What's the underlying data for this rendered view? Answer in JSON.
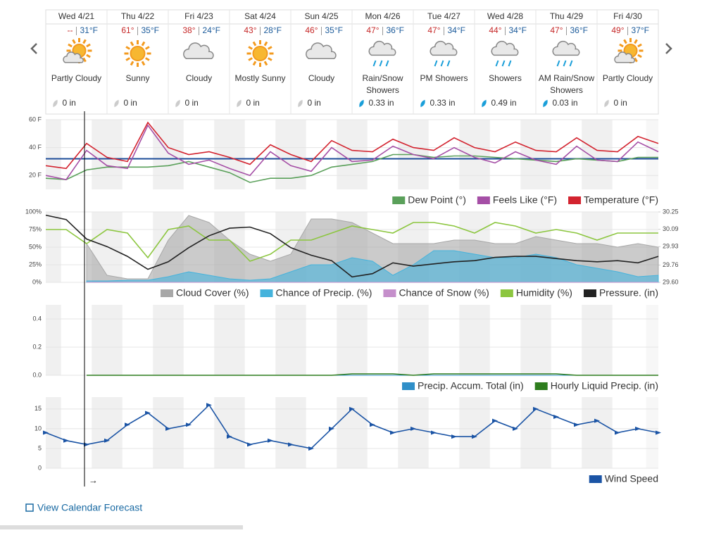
{
  "forecast_days": [
    {
      "day": "Wed 4/21",
      "hi": "--",
      "lo": "31°F",
      "condition": "Partly Cloudy",
      "precip": "0 in"
    },
    {
      "day": "Thu 4/22",
      "hi": "61°",
      "lo": "35°F",
      "condition": "Sunny",
      "precip": "0 in"
    },
    {
      "day": "Fri 4/23",
      "hi": "38°",
      "lo": "24°F",
      "condition": "Cloudy",
      "precip": "0 in"
    },
    {
      "day": "Sat 4/24",
      "hi": "43°",
      "lo": "28°F",
      "condition": "Mostly Sunny",
      "precip": "0 in"
    },
    {
      "day": "Sun 4/25",
      "hi": "46°",
      "lo": "35°F",
      "condition": "Cloudy",
      "precip": "0 in"
    },
    {
      "day": "Mon 4/26",
      "hi": "47°",
      "lo": "36°F",
      "condition": "Rain/Snow Showers",
      "precip": "0.33 in"
    },
    {
      "day": "Tue 4/27",
      "hi": "47°",
      "lo": "34°F",
      "condition": "PM Showers",
      "precip": "0.33 in"
    },
    {
      "day": "Wed 4/28",
      "hi": "44°",
      "lo": "34°F",
      "condition": "Showers",
      "precip": "0.49 in"
    },
    {
      "day": "Thu 4/29",
      "hi": "47°",
      "lo": "36°F",
      "condition": "AM Rain/Snow Showers",
      "precip": "0.03 in"
    },
    {
      "day": "Fri 4/30",
      "hi": "49°",
      "lo": "37°F",
      "condition": "Partly Cloudy",
      "precip": "0 in"
    }
  ],
  "now_marker": "→",
  "link": "View Calendar Forecast",
  "chart_data": [
    {
      "type": "line",
      "ylim": [
        10,
        60
      ],
      "yticks": [
        {
          "value": 20,
          "label": "20 F"
        },
        {
          "value": 40,
          "label": "40 F"
        },
        {
          "value": 60,
          "label": "60 F"
        }
      ],
      "freeze_line": 32,
      "freeze_color": "#1f4e9a",
      "series": [
        {
          "name": "Dew Point (°)",
          "color": "#5aa05a",
          "values": [
            18,
            17,
            24,
            26,
            26,
            26,
            27,
            30,
            26,
            22,
            15,
            18,
            18,
            20,
            26,
            28,
            30,
            35,
            35,
            33,
            34,
            34,
            33,
            32,
            31,
            30,
            32,
            31,
            30,
            33,
            33
          ]
        },
        {
          "name": "Feels Like (°F)",
          "color": "#a54fa6",
          "values": [
            20,
            17,
            38,
            27,
            25,
            56,
            36,
            28,
            31,
            25,
            20,
            37,
            27,
            23,
            40,
            30,
            31,
            41,
            35,
            32,
            40,
            33,
            29,
            37,
            31,
            28,
            41,
            31,
            30,
            44,
            37
          ]
        },
        {
          "name": "Temperature (°F)",
          "color": "#d3232f",
          "values": [
            27,
            25,
            43,
            33,
            30,
            58,
            40,
            35,
            37,
            33,
            28,
            42,
            35,
            30,
            45,
            38,
            37,
            46,
            40,
            38,
            47,
            40,
            37,
            44,
            38,
            37,
            47,
            38,
            37,
            48,
            43
          ]
        }
      ]
    },
    {
      "type": "line",
      "ylim": [
        0,
        100
      ],
      "yticks": [
        {
          "value": 0,
          "label": "0%"
        },
        {
          "value": 25,
          "label": "25%"
        },
        {
          "value": 50,
          "label": "50%"
        },
        {
          "value": 75,
          "label": "75%"
        },
        {
          "value": 100,
          "label": "100%"
        }
      ],
      "y2lim": [
        29.6,
        30.25
      ],
      "y2ticks": [
        {
          "value": 29.6,
          "label": "29.60"
        },
        29.76,
        29.93,
        30.09,
        30.25
      ],
      "series": [
        {
          "name": "Cloud Cover (%)",
          "color": "#a8a8a8",
          "style": "area",
          "values": [
            null,
            null,
            55,
            10,
            5,
            5,
            60,
            95,
            85,
            60,
            40,
            30,
            40,
            90,
            90,
            85,
            70,
            55,
            55,
            55,
            60,
            60,
            55,
            55,
            65,
            60,
            55,
            55,
            50,
            55,
            50
          ]
        },
        {
          "name": "Chance of Precip. (%)",
          "color": "#45b3dc",
          "style": "area",
          "values": [
            null,
            null,
            2,
            2,
            3,
            3,
            8,
            15,
            10,
            5,
            3,
            5,
            15,
            25,
            25,
            35,
            30,
            10,
            25,
            45,
            45,
            40,
            35,
            35,
            40,
            35,
            25,
            20,
            15,
            8,
            10
          ]
        },
        {
          "name": "Chance of Snow (%)",
          "color": "#c58fcb",
          "style": "area",
          "values": [
            null,
            null,
            0,
            0,
            0,
            0,
            0,
            0,
            0,
            0,
            0,
            0,
            0,
            0,
            0,
            0,
            0,
            0,
            0,
            0,
            0,
            0,
            0,
            0,
            0,
            0,
            0,
            0,
            0,
            0,
            0
          ]
        },
        {
          "name": "Humidity (%)",
          "color": "#8cc63f",
          "values": [
            75,
            75,
            55,
            75,
            70,
            35,
            75,
            80,
            60,
            60,
            30,
            40,
            60,
            60,
            70,
            80,
            75,
            70,
            85,
            85,
            80,
            70,
            85,
            80,
            70,
            75,
            70,
            60,
            70,
            70,
            70
          ]
        },
        {
          "name": "Pressure. (in)",
          "color": "#222222",
          "axis": "y2",
          "values": [
            30.22,
            30.18,
            30.0,
            29.93,
            29.84,
            29.72,
            29.79,
            29.92,
            30.03,
            30.1,
            30.11,
            30.05,
            29.92,
            29.85,
            29.8,
            29.65,
            29.68,
            29.78,
            29.75,
            29.77,
            29.79,
            29.8,
            29.83,
            29.84,
            29.84,
            29.82,
            29.8,
            29.79,
            29.8,
            29.78,
            29.84
          ]
        }
      ]
    },
    {
      "type": "line",
      "ylim": [
        0,
        0.5
      ],
      "yticks": [
        {
          "value": 0,
          "label": "0.0"
        },
        0.2,
        0.4
      ],
      "series": [
        {
          "name": "Precip. Accum. Total (in)",
          "color": "#2f8fc8",
          "style": "area",
          "values": [
            null,
            null,
            0,
            0,
            0,
            0,
            0,
            0,
            0,
            0,
            0,
            0,
            0,
            0,
            0,
            0,
            0,
            0,
            0,
            0,
            0,
            0,
            0,
            0,
            0,
            0,
            0,
            0,
            0,
            0,
            0
          ]
        },
        {
          "name": "Hourly Liquid Precip. (in)",
          "color": "#2e7d1e",
          "values": [
            null,
            null,
            0,
            0,
            0,
            0,
            0,
            0,
            0,
            0,
            0,
            0,
            0,
            0,
            0,
            0.01,
            0.01,
            0.01,
            0,
            0.01,
            0.01,
            0.01,
            0.01,
            0.01,
            0.01,
            0.01,
            0,
            0,
            0,
            0,
            0
          ]
        }
      ]
    },
    {
      "type": "line",
      "ylim": [
        0,
        18
      ],
      "yticks": [
        0,
        5,
        10,
        15
      ],
      "series": [
        {
          "name": "Wind Speed",
          "color": "#1b54a5",
          "markers": true,
          "values": [
            9,
            7,
            6,
            7,
            11,
            14,
            10,
            11,
            16,
            8,
            6,
            7,
            6,
            5,
            10,
            15,
            11,
            9,
            10,
            9,
            8,
            8,
            12,
            10,
            15,
            13,
            11,
            12,
            9,
            10,
            9
          ]
        }
      ]
    }
  ]
}
